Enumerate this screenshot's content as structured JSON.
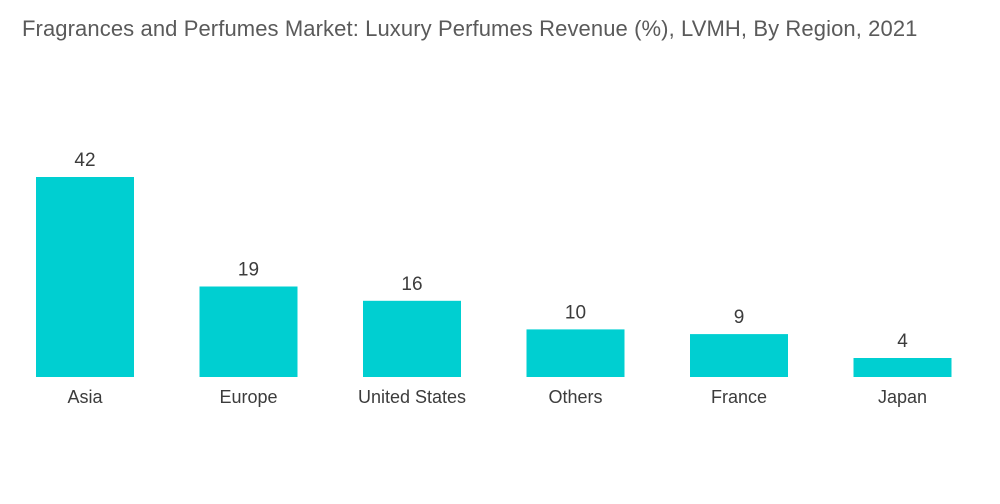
{
  "chart_data": {
    "type": "bar",
    "title": "Fragrances and Perfumes Market: Luxury Perfumes Revenue (%), LVMH, By Region, 2021",
    "categories": [
      "Asia",
      "Europe",
      "United States",
      "Others",
      "France",
      "Japan"
    ],
    "values": [
      42,
      19,
      16,
      10,
      9,
      4
    ],
    "value_labels": [
      "42",
      "19",
      "16",
      "10",
      "9",
      "4"
    ],
    "xlabel": "",
    "ylabel": "",
    "ylim": [
      0,
      42
    ],
    "grid": false,
    "legend": "none",
    "bar_color": "#00cfd1"
  }
}
